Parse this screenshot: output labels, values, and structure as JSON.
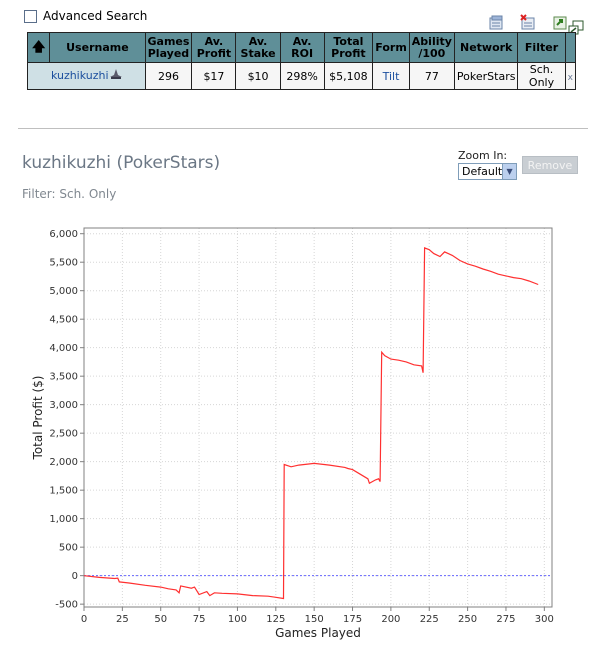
{
  "advanced_search": {
    "label": "Advanced Search",
    "checked": false
  },
  "toolbar_icons": [
    "add-to-list-icon",
    "delete-list-icon",
    "export-icon",
    "popout-icon"
  ],
  "table": {
    "headers": [
      "",
      "Username",
      "Games Played",
      "Av. Profit",
      "Av. Stake",
      "Av. ROI",
      "Total Profit",
      "Form",
      "Ability /100",
      "Network",
      "Filter",
      ""
    ],
    "row": {
      "username": "kuzhikuzhi",
      "games_played": "296",
      "av_profit": "$17",
      "av_stake": "$10",
      "av_roi": "298%",
      "total_profit": "$5,108",
      "form": "Tilt",
      "ability": "77",
      "network": "PokerStars",
      "filter": "Sch. Only",
      "close": "x"
    }
  },
  "profile": {
    "title": "kuzhikuzhi (PokerStars)",
    "filter": "Filter: Sch. Only"
  },
  "zoom": {
    "label": "Zoom In:",
    "selected": "Default"
  },
  "remove_button": "Remove",
  "colors": {
    "line": "#ff3030",
    "zero_line": "#6666ff",
    "header_bg": "#5f8f98"
  },
  "chart_data": {
    "type": "line",
    "xlabel": "Games Played",
    "ylabel": "Total Profit ($)",
    "xlim": [
      0,
      305
    ],
    "ylim": [
      -550,
      6100
    ],
    "xticks": [
      0,
      25,
      50,
      75,
      100,
      125,
      150,
      175,
      200,
      225,
      250,
      275,
      300
    ],
    "yticks": [
      -500,
      0,
      500,
      1000,
      1500,
      2000,
      2500,
      3000,
      3500,
      4000,
      4500,
      5000,
      5500,
      6000
    ],
    "grid": true,
    "zero_reference_line": true,
    "series": [
      {
        "x": [
          0,
          10,
          20,
          22,
          23,
          30,
          40,
          50,
          55,
          60,
          62,
          63,
          70,
          72,
          75,
          80,
          82,
          85,
          90,
          100,
          110,
          120,
          125,
          130,
          130.5,
          135,
          140,
          150,
          160,
          170,
          172,
          175,
          180,
          185,
          186,
          190,
          192,
          193,
          194,
          196,
          200,
          205,
          210,
          215,
          220,
          221,
          222,
          225,
          228,
          232,
          235,
          240,
          245,
          250,
          255,
          260,
          265,
          270,
          275,
          280,
          285,
          290,
          296
        ],
        "y": [
          0,
          -30,
          -50,
          -45,
          -110,
          -130,
          -170,
          -200,
          -230,
          -250,
          -300,
          -180,
          -220,
          -200,
          -330,
          -280,
          -350,
          -300,
          -310,
          -320,
          -350,
          -360,
          -380,
          -400,
          1950,
          1910,
          1940,
          1970,
          1940,
          1900,
          1880,
          1860,
          1780,
          1700,
          1620,
          1680,
          1700,
          1650,
          3920,
          3860,
          3800,
          3780,
          3750,
          3700,
          3680,
          3560,
          5750,
          5720,
          5650,
          5600,
          5680,
          5620,
          5530,
          5470,
          5430,
          5380,
          5340,
          5290,
          5260,
          5230,
          5210,
          5170,
          5108
        ]
      }
    ]
  }
}
